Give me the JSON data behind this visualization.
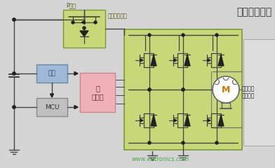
{
  "bg_color": "#d4d4d4",
  "title": "无刷电机应用",
  "title_color": "#333333",
  "title_fontsize": 10,
  "watermark": "www.eetronics.com",
  "watermark_color": "#44aa44",
  "p_channel_label": "P沟道",
  "reverse_protect_label": "反向电压保护",
  "power_label": "电源",
  "mcu_label": "MCU",
  "predriver_label": "预\n驱动器",
  "motor_label": "M",
  "motor_desc": "风机电机\n（无刷）",
  "green_fill": "#c8d878",
  "green_stroke": "#7a9a30",
  "pink_fill": "#f0b0b8",
  "pink_stroke": "#cc8888",
  "blue_fill": "#a0b8d8",
  "blue_stroke": "#6688aa",
  "gray_fill": "#c0c0c0",
  "gray_stroke": "#888888",
  "line_color": "#222222",
  "wire_color": "#444444"
}
